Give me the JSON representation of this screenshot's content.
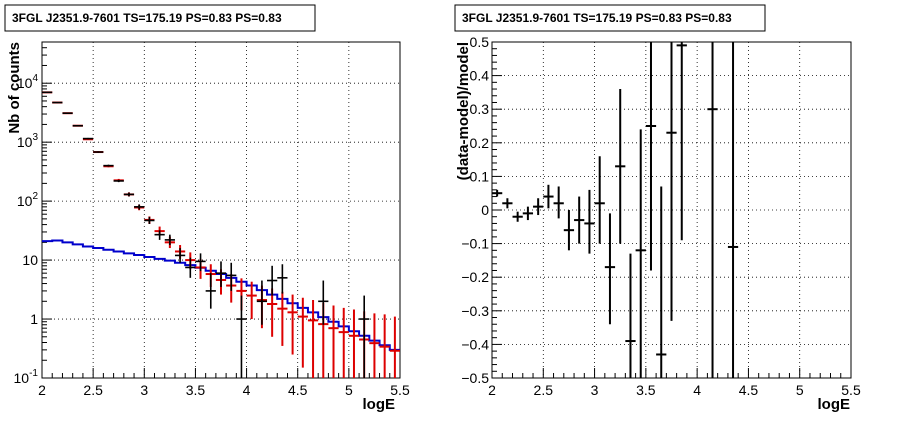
{
  "colors": {
    "data": "#000000",
    "model_total": "#dd0000",
    "source_model": "#0000cc",
    "grid": "#000000"
  },
  "chart_data": [
    {
      "type": "histogram",
      "title": "3FGL J2351.9-7601 TS=175.19 PS=0.83 PS=0.83",
      "xlabel": "logE",
      "ylabel": "Nb of counts",
      "xlim": [
        2,
        5.5
      ],
      "ylim": [
        0.1,
        50000
      ],
      "yscale": "log",
      "grid": true,
      "x_ticks": [
        "2",
        "2.5",
        "3",
        "3.5",
        "4",
        "4.5",
        "5",
        "5.5"
      ],
      "y_ticks": [
        "10^-1",
        "1",
        "10",
        "10^2",
        "10^3",
        "10^4"
      ],
      "bin_edges_range": [
        2,
        5.5
      ],
      "bin_width": 0.1,
      "series": [
        {
          "name": "",
          "role": "data",
          "points": [
            {
              "x": 2.05,
              "y": 7000,
              "lo": 6900,
              "hi": 7100
            },
            {
              "x": 2.15,
              "y": 4700,
              "lo": 4600,
              "hi": 4800
            },
            {
              "x": 2.25,
              "y": 3100,
              "lo": 3050,
              "hi": 3150
            },
            {
              "x": 2.35,
              "y": 1900,
              "lo": 1850,
              "hi": 1950
            },
            {
              "x": 2.45,
              "y": 1150,
              "lo": 1120,
              "hi": 1180
            },
            {
              "x": 2.55,
              "y": 680,
              "lo": 660,
              "hi": 700
            },
            {
              "x": 2.65,
              "y": 400,
              "lo": 385,
              "hi": 415
            },
            {
              "x": 2.75,
              "y": 220,
              "lo": 210,
              "hi": 230
            },
            {
              "x": 2.85,
              "y": 130,
              "lo": 120,
              "hi": 140
            },
            {
              "x": 2.95,
              "y": 80,
              "lo": 72,
              "hi": 88
            },
            {
              "x": 3.05,
              "y": 47,
              "lo": 41,
              "hi": 54
            },
            {
              "x": 3.15,
              "y": 27,
              "lo": 22,
              "hi": 32
            },
            {
              "x": 3.25,
              "y": 22,
              "lo": 18,
              "hi": 27
            },
            {
              "x": 3.35,
              "y": 12,
              "lo": 9,
              "hi": 16
            },
            {
              "x": 3.45,
              "y": 7.5,
              "lo": 5,
              "hi": 11
            },
            {
              "x": 3.55,
              "y": 9.5,
              "lo": 6.5,
              "hi": 13
            },
            {
              "x": 3.65,
              "y": 3,
              "lo": 1.5,
              "hi": 6
            },
            {
              "x": 3.75,
              "y": 6,
              "lo": 3.5,
              "hi": 9.5
            },
            {
              "x": 3.85,
              "y": 5.5,
              "lo": 3,
              "hi": 9
            },
            {
              "x": 3.95,
              "y": 1,
              "lo": 0.1,
              "hi": 2.5
            },
            {
              "x": 4.15,
              "y": 2,
              "lo": 0.8,
              "hi": 4.5
            },
            {
              "x": 4.25,
              "y": 4.5,
              "lo": 2.5,
              "hi": 8
            },
            {
              "x": 4.35,
              "y": 5,
              "lo": 2.7,
              "hi": 8.5
            },
            {
              "x": 4.75,
              "y": 2,
              "lo": 0.8,
              "hi": 4.5
            },
            {
              "x": 5.15,
              "y": 1,
              "lo": 0.1,
              "hi": 2.5
            }
          ]
        },
        {
          "name": "",
          "role": "total_model",
          "points": [
            {
              "x": 2.05,
              "y": 7000,
              "lo": 6900,
              "hi": 7100
            },
            {
              "x": 2.15,
              "y": 4700,
              "lo": 4600,
              "hi": 4800
            },
            {
              "x": 2.25,
              "y": 3100,
              "lo": 3050,
              "hi": 3150
            },
            {
              "x": 2.35,
              "y": 1900,
              "lo": 1850,
              "hi": 1950
            },
            {
              "x": 2.45,
              "y": 1120,
              "lo": 1090,
              "hi": 1150
            },
            {
              "x": 2.55,
              "y": 680,
              "lo": 660,
              "hi": 700
            },
            {
              "x": 2.65,
              "y": 390,
              "lo": 375,
              "hi": 405
            },
            {
              "x": 2.75,
              "y": 225,
              "lo": 212,
              "hi": 238
            },
            {
              "x": 2.85,
              "y": 130,
              "lo": 120,
              "hi": 141
            },
            {
              "x": 2.95,
              "y": 78,
              "lo": 70,
              "hi": 87
            },
            {
              "x": 3.05,
              "y": 48,
              "lo": 41,
              "hi": 55
            },
            {
              "x": 3.15,
              "y": 31,
              "lo": 26,
              "hi": 37
            },
            {
              "x": 3.25,
              "y": 20,
              "lo": 16,
              "hi": 25
            },
            {
              "x": 3.35,
              "y": 14,
              "lo": 10.5,
              "hi": 18
            },
            {
              "x": 3.45,
              "y": 10,
              "lo": 7,
              "hi": 13.5
            },
            {
              "x": 3.55,
              "y": 7.5,
              "lo": 4.8,
              "hi": 10.5
            },
            {
              "x": 3.65,
              "y": 5.8,
              "lo": 3.5,
              "hi": 8.5
            },
            {
              "x": 3.75,
              "y": 4.6,
              "lo": 2.6,
              "hi": 7
            },
            {
              "x": 3.85,
              "y": 3.7,
              "lo": 1.9,
              "hi": 5.8
            },
            {
              "x": 3.95,
              "y": 3.0,
              "lo": 1.4,
              "hi": 4.9
            },
            {
              "x": 4.05,
              "y": 2.5,
              "lo": 1.0,
              "hi": 4.3
            },
            {
              "x": 4.15,
              "y": 2.1,
              "lo": 0.7,
              "hi": 3.7
            },
            {
              "x": 4.25,
              "y": 1.8,
              "lo": 0.5,
              "hi": 3.3
            },
            {
              "x": 4.35,
              "y": 1.5,
              "lo": 0.35,
              "hi": 2.9
            },
            {
              "x": 4.45,
              "y": 1.3,
              "lo": 0.25,
              "hi": 2.6
            },
            {
              "x": 4.55,
              "y": 1.1,
              "lo": 0.15,
              "hi": 2.3
            },
            {
              "x": 4.65,
              "y": 0.95,
              "lo": 0.1,
              "hi": 2.1
            },
            {
              "x": 4.75,
              "y": 0.82,
              "lo": 0.1,
              "hi": 1.9
            },
            {
              "x": 4.85,
              "y": 0.7,
              "lo": 0.1,
              "hi": 1.7
            },
            {
              "x": 4.95,
              "y": 0.6,
              "lo": 0.1,
              "hi": 1.55
            },
            {
              "x": 5.05,
              "y": 0.52,
              "lo": 0.1,
              "hi": 1.45
            },
            {
              "x": 5.15,
              "y": 0.45,
              "lo": 0.1,
              "hi": 1.35
            },
            {
              "x": 5.25,
              "y": 0.39,
              "lo": 0.1,
              "hi": 1.25
            },
            {
              "x": 5.35,
              "y": 0.34,
              "lo": 0.1,
              "hi": 1.2
            },
            {
              "x": 5.45,
              "y": 0.29,
              "lo": 0.1,
              "hi": 1.1
            }
          ]
        },
        {
          "name": "",
          "role": "source_model",
          "step_values": [
            21,
            21.5,
            20,
            18.5,
            17,
            16,
            15,
            14,
            13,
            12.2,
            11.3,
            10.5,
            9.8,
            9,
            8.2,
            7.4,
            6.6,
            5.8,
            5,
            4.3,
            3.7,
            3.1,
            2.6,
            2.2,
            1.85,
            1.55,
            1.3,
            1.08,
            0.9,
            0.75,
            0.62,
            0.52,
            0.43,
            0.36,
            0.3
          ]
        }
      ]
    },
    {
      "type": "scatter",
      "title": "3FGL J2351.9-7601 TS=175.19 PS=0.83 PS=0.83",
      "xlabel": "logE",
      "ylabel": "(data-model)/model",
      "xlim": [
        2,
        5.5
      ],
      "ylim": [
        -0.5,
        0.5
      ],
      "grid": true,
      "x_ticks": [
        "2",
        "2.5",
        "3",
        "3.5",
        "4",
        "4.5",
        "5",
        "5.5"
      ],
      "y_ticks": [
        "-0.5",
        "-0.4",
        "-0.3",
        "-0.2",
        "-0.1",
        "0",
        "0.1",
        "0.2",
        "0.3",
        "0.4",
        "0.5"
      ],
      "series": [
        {
          "name": "",
          "points": [
            {
              "x": 2.05,
              "y": 0.05,
              "lo": 0.04,
              "hi": 0.06
            },
            {
              "x": 2.15,
              "y": 0.02,
              "lo": 0.005,
              "hi": 0.035
            },
            {
              "x": 2.25,
              "y": -0.02,
              "lo": -0.035,
              "hi": -0.005
            },
            {
              "x": 2.35,
              "y": -0.01,
              "lo": -0.03,
              "hi": 0.01
            },
            {
              "x": 2.45,
              "y": 0.01,
              "lo": -0.015,
              "hi": 0.035
            },
            {
              "x": 2.55,
              "y": 0.04,
              "lo": 0.005,
              "hi": 0.075
            },
            {
              "x": 2.65,
              "y": 0.02,
              "lo": -0.025,
              "hi": 0.07
            },
            {
              "x": 2.75,
              "y": -0.06,
              "lo": -0.12,
              "hi": 0.0
            },
            {
              "x": 2.85,
              "y": -0.03,
              "lo": -0.1,
              "hi": 0.04
            },
            {
              "x": 2.95,
              "y": -0.04,
              "lo": -0.13,
              "hi": 0.06
            },
            {
              "x": 3.05,
              "y": 0.02,
              "lo": -0.1,
              "hi": 0.16
            },
            {
              "x": 3.15,
              "y": -0.17,
              "lo": -0.34,
              "hi": -0.01
            },
            {
              "x": 3.25,
              "y": 0.13,
              "lo": -0.1,
              "hi": 0.36
            },
            {
              "x": 3.35,
              "y": -0.39,
              "lo": -0.5,
              "hi": -0.13
            },
            {
              "x": 3.45,
              "y": -0.12,
              "lo": -0.5,
              "hi": 0.24
            },
            {
              "x": 3.55,
              "y": 0.25,
              "lo": -0.18,
              "hi": 0.5
            },
            {
              "x": 3.65,
              "y": -0.43,
              "lo": -0.5,
              "hi": 0.07
            },
            {
              "x": 3.75,
              "y": 0.23,
              "lo": -0.33,
              "hi": 0.5
            },
            {
              "x": 3.85,
              "y": 0.49,
              "lo": -0.09,
              "hi": 0.5
            },
            {
              "x": 4.15,
              "y": 0.3,
              "lo": -0.5,
              "hi": 0.5
            },
            {
              "x": 4.35,
              "y": -0.11,
              "lo": -0.5,
              "hi": 0.5
            }
          ]
        }
      ]
    }
  ]
}
